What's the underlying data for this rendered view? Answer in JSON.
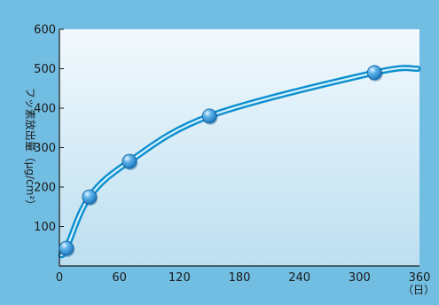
{
  "chart_data": {
    "type": "line",
    "title": "",
    "xlabel": "（日）",
    "ylabel": "フッ素放出量（μg/cm²）",
    "xlim": [
      0,
      360
    ],
    "ylim": [
      0,
      600
    ],
    "x_ticks": [
      0,
      60,
      120,
      180,
      240,
      300,
      360
    ],
    "y_ticks": [
      100,
      200,
      300,
      400,
      500,
      600
    ],
    "grid": false,
    "legend": "none",
    "series": [
      {
        "x": [
          7,
          30,
          70,
          150,
          315
        ],
        "values": [
          45,
          175,
          265,
          380,
          490
        ]
      }
    ],
    "colors": {
      "frame_bg": "#72bde2",
      "plot_bg_top": "#f2f9fd",
      "plot_bg_bottom": "#bcdff0",
      "curve_outer": "#0d8fcf",
      "curve_inner": "#d9f4ff",
      "point_fill": "#1672b8",
      "axis": "#1a1a1a"
    }
  }
}
